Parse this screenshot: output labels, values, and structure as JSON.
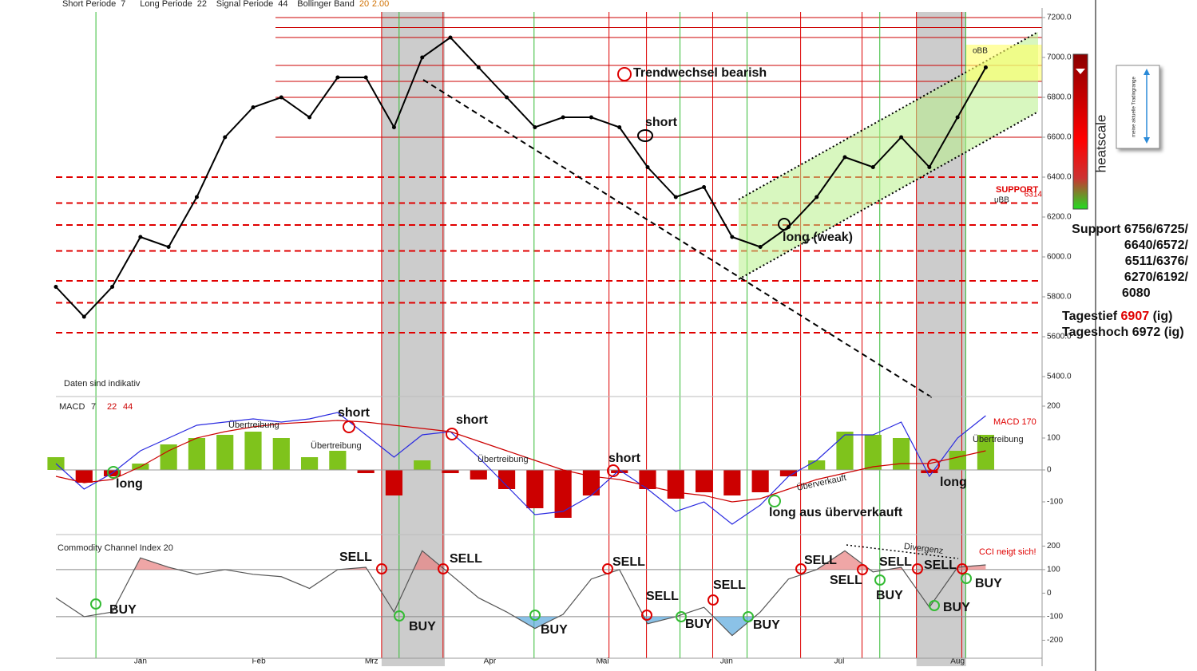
{
  "chart_data": [
    {
      "type": "line",
      "indicators": [
        {
          "label": "Short Periode",
          "value": 7
        },
        {
          "label": "Long Periode",
          "value": 22
        },
        {
          "label": "Signal Periode",
          "value": 44
        }
      ],
      "bollinger": {
        "label": "Bollinger Band",
        "values": [
          "20",
          "2.00"
        ]
      },
      "x": [
        0,
        1,
        2,
        3,
        4,
        5,
        6,
        7,
        8,
        9,
        10,
        11,
        12,
        13,
        14,
        15,
        16,
        17,
        18,
        19,
        20,
        21,
        22,
        23,
        24,
        25,
        26,
        27,
        28,
        29,
        30,
        31,
        32,
        33
      ],
      "series": [
        {
          "color": "#000000",
          "values": [
            5850,
            5700,
            5850,
            6100,
            6050,
            6300,
            6600,
            6750,
            6800,
            6700,
            6900,
            6900,
            6650,
            7000,
            7100,
            6950,
            6800,
            6650,
            6700,
            6700,
            6650,
            6450,
            6300,
            6350,
            6100,
            6050,
            6150,
            6300,
            6500,
            6450,
            6600,
            6450,
            6700,
            6950
          ]
        }
      ],
      "xlim": [
        0,
        35
      ],
      "xticks": [
        {
          "value": 3.0,
          "label": "Jan"
        },
        {
          "value": 7.2,
          "label": "Feb"
        },
        {
          "value": 11.2,
          "label": "Mrz"
        },
        {
          "value": 15.4,
          "label": "Apr"
        },
        {
          "value": 19.4,
          "label": "Mai"
        },
        {
          "value": 23.8,
          "label": "Jun"
        },
        {
          "value": 27.8,
          "label": "Jul"
        },
        {
          "value": 32.0,
          "label": "Aug"
        }
      ],
      "ylim": [
        5308,
        7228
      ],
      "yticks": [
        {
          "value": 7200,
          "label": "7200.0"
        },
        {
          "value": 7000,
          "label": "7000.0"
        },
        {
          "value": 6800,
          "label": "6800.0"
        },
        {
          "value": 6600,
          "label": "6600.0"
        },
        {
          "value": 6400,
          "label": "6400.0"
        },
        {
          "value": 6200,
          "label": "6200.0"
        },
        {
          "value": 6000,
          "label": "6000.0"
        },
        {
          "value": 5800,
          "label": "5800.0"
        },
        {
          "value": 5600,
          "label": "5600.0"
        },
        {
          "value": 5400,
          "label": "5400.0"
        }
      ],
      "resistance_levels": [
        7200,
        7150,
        7100,
        6960,
        6880,
        6800,
        6600
      ],
      "support_levels": [
        6400,
        6270,
        6160,
        6030,
        5880,
        5770,
        5620
      ],
      "shaded_periods": [
        [
          11.56,
          13.8
        ],
        [
          30.54,
          32.3
        ]
      ],
      "buy_lines": [
        1.42,
        12.18,
        16.97,
        22.15,
        24.53,
        29.24,
        32.29
      ],
      "sell_lines": [
        11.56,
        13.74,
        19.63,
        20.96,
        23.31,
        26.43,
        28.61,
        30.54,
        32.15
      ],
      "annotations": [
        "Trendwechsel bearish",
        "short",
        "long (weak)",
        "Daten sind indikativ",
        "SUPPORT",
        "6314",
        "oBB",
        "uBB"
      ],
      "side_panel": {
        "heatscale": "heatscale",
        "range_note": "meine aktuelle Tradingrange",
        "support_lines": [
          "Support 6756/6725/",
          "6640/6572/",
          "6511/6376/",
          "6270/6192/",
          "6080"
        ],
        "day_low": {
          "label": "Tagestief",
          "value": 6907,
          "source": "(ig)"
        },
        "day_high": {
          "label": "Tageshoch",
          "value": 6972,
          "source": "(ig)"
        }
      }
    },
    {
      "type": "macd",
      "title": "MACD",
      "params": [
        7,
        22,
        44
      ],
      "x": [
        0,
        1,
        2,
        3,
        4,
        5,
        6,
        7,
        8,
        9,
        10,
        11,
        12,
        13,
        14,
        15,
        16,
        17,
        18,
        19,
        20,
        21,
        22,
        23,
        24,
        25,
        26,
        27,
        28,
        29,
        30,
        31,
        32,
        33
      ],
      "histogram": {
        "positive_color": "#7fc31c",
        "negative_color": "#cc0000",
        "values": [
          40,
          -40,
          -20,
          20,
          80,
          100,
          110,
          120,
          100,
          40,
          60,
          -10,
          -80,
          30,
          -10,
          -30,
          -60,
          -120,
          -150,
          -80,
          -10,
          -60,
          -90,
          -70,
          -80,
          -70,
          -20,
          30,
          120,
          110,
          100,
          -10,
          60,
          110
        ]
      },
      "series": [
        {
          "color": "#2a2ae0",
          "values": [
            20,
            -60,
            -10,
            60,
            100,
            140,
            150,
            160,
            150,
            160,
            180,
            110,
            40,
            110,
            120,
            40,
            -50,
            -140,
            -130,
            -80,
            0,
            -60,
            -130,
            -100,
            -170,
            -110,
            -20,
            30,
            110,
            110,
            150,
            -20,
            100,
            170
          ]
        },
        {
          "color": "#cc0000",
          "values": [
            -20,
            -40,
            -30,
            10,
            60,
            100,
            120,
            135,
            145,
            150,
            155,
            150,
            140,
            130,
            120,
            90,
            60,
            30,
            0,
            -20,
            -30,
            -50,
            -70,
            -80,
            -100,
            -90,
            -60,
            -30,
            -10,
            10,
            20,
            20,
            40,
            60
          ]
        }
      ],
      "xlim": [
        0,
        35
      ],
      "ylim": [
        -197.5,
        210
      ],
      "yticks": [
        200,
        100,
        0,
        -100
      ],
      "annotations": [
        "long",
        "short",
        "short",
        "short",
        "Übertreibung",
        "Übertreibung",
        "Übertreibung",
        "Übertreibung",
        "Überverkauft",
        "long aus überverkauft",
        "long",
        "MACD 170"
      ]
    },
    {
      "type": "cci",
      "title": "Commodity Channel Index 20",
      "x": [
        0,
        1,
        2,
        3,
        4,
        5,
        6,
        7,
        8,
        9,
        10,
        11,
        12,
        13,
        14,
        15,
        16,
        17,
        18,
        19,
        20,
        21,
        22,
        23,
        24,
        25,
        26,
        27,
        28,
        29,
        30,
        31,
        32,
        33
      ],
      "series": [
        {
          "color": "#555555",
          "values": [
            -20,
            -100,
            -80,
            150,
            110,
            80,
            100,
            80,
            70,
            20,
            100,
            110,
            -80,
            180,
            80,
            -20,
            -80,
            -150,
            -90,
            60,
            100,
            -130,
            -100,
            -60,
            -180,
            -80,
            60,
            100,
            180,
            90,
            110,
            -60,
            110,
            120
          ]
        }
      ],
      "xlim": [
        0,
        35
      ],
      "ylim": [
        -276.5,
        215
      ],
      "yticks": [
        200,
        100,
        0,
        -100,
        -200
      ],
      "bands": [
        100,
        -100
      ],
      "signal_labels": [
        "BUY",
        "SELL",
        "BUY",
        "SELL",
        "BUY",
        "SELL",
        "SELL",
        "BUY",
        "SELL",
        "BUY",
        "SELL",
        "SELL",
        "SELL",
        "BUY",
        "SELL",
        "BUY",
        "BUY"
      ],
      "annotations": [
        "Divergenz",
        "CCI neigt sich!"
      ]
    }
  ]
}
